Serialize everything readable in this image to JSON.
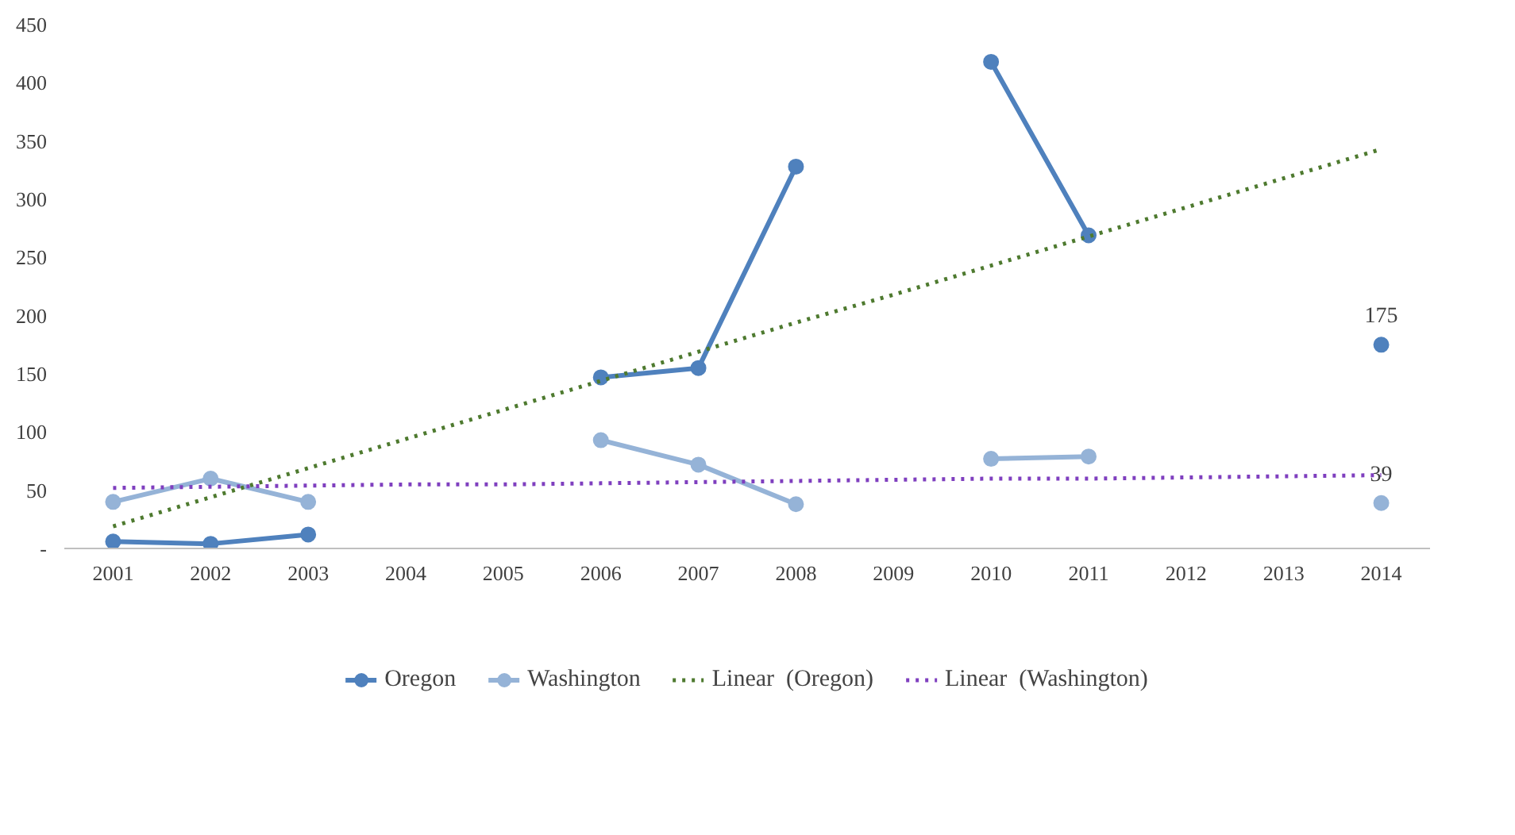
{
  "chart_data": {
    "type": "line",
    "categories": [
      "2001",
      "2002",
      "2003",
      "2004",
      "2005",
      "2006",
      "2007",
      "2008",
      "2009",
      "2010",
      "2011",
      "2012",
      "2013",
      "2014"
    ],
    "ylim": [
      0,
      450
    ],
    "yticks": [
      {
        "value": 0,
        "label": "-"
      },
      50,
      100,
      150,
      200,
      250,
      300,
      350,
      400,
      450
    ],
    "series": [
      {
        "name": "Oregon",
        "color": "#4f81bd",
        "marker": "circle",
        "line_style": "solid",
        "values": [
          6,
          4,
          12,
          null,
          null,
          147,
          155,
          328,
          null,
          418,
          269,
          null,
          null,
          175
        ]
      },
      {
        "name": "Washington",
        "color": "#95b3d7",
        "marker": "circle",
        "line_style": "solid",
        "values": [
          40,
          60,
          40,
          null,
          null,
          93,
          72,
          38,
          null,
          77,
          79,
          null,
          null,
          39
        ]
      },
      {
        "name": "Linear  (Oregon)",
        "color": "#4e7a2f",
        "marker": "none",
        "line_style": "dotted",
        "values": [
          19,
          44,
          69,
          94,
          119,
          144,
          169,
          194,
          218,
          243,
          268,
          293,
          318,
          343
        ]
      },
      {
        "name": "Linear  (Washington)",
        "color": "#7f3fbf",
        "marker": "none",
        "line_style": "dotted",
        "values": [
          52,
          53,
          54,
          55,
          55,
          56,
          57,
          58,
          59,
          60,
          60,
          61,
          62,
          63
        ]
      }
    ],
    "annotations": [
      {
        "text": "175",
        "x": "2014",
        "y": 175
      },
      {
        "text": "39",
        "x": "2014",
        "y": 39
      }
    ],
    "grid": false,
    "legend": "bottom"
  }
}
